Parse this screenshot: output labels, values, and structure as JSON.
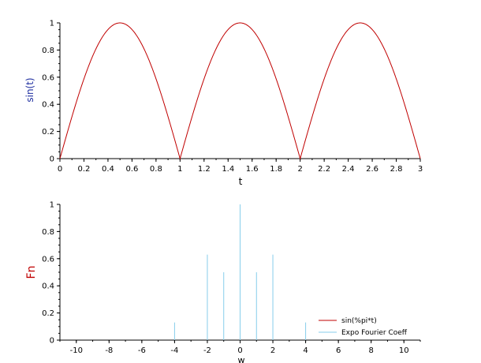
{
  "colors": {
    "background": "#ffffff",
    "axis": "#000000",
    "top_curve": "#c00000",
    "stem": "#87ceeb",
    "top_ylabel": "#1f2fa0",
    "bottom_ylabel": "#c00000"
  },
  "chart_data": [
    {
      "type": "line",
      "function": "abs(sin(pi*t))",
      "xlabel": "t",
      "ylabel": "sin(t)",
      "xlim": [
        0,
        3
      ],
      "ylim": [
        0,
        1
      ],
      "x_ticks": [
        "0",
        "0.2",
        "0.4",
        "0.6",
        "0.8",
        "1",
        "1.2",
        "1.4",
        "1.6",
        "1.8",
        "2",
        "2.2",
        "2.4",
        "2.6",
        "2.8",
        "3"
      ],
      "y_ticks": [
        "0",
        "0.2",
        "0.4",
        "0.6",
        "0.8",
        "1"
      ],
      "series": [
        {
          "x": [
            0,
            0.1,
            0.2,
            0.3,
            0.4,
            0.5,
            0.6,
            0.7,
            0.8,
            0.9,
            1.0,
            1.1,
            1.2,
            1.3,
            1.4,
            1.5,
            1.6,
            1.7,
            1.8,
            1.9,
            2.0,
            2.1,
            2.2,
            2.3,
            2.4,
            2.5,
            2.6,
            2.7,
            2.8,
            2.9,
            3.0
          ],
          "y": [
            0,
            0.309,
            0.588,
            0.809,
            0.951,
            1,
            0.951,
            0.809,
            0.588,
            0.309,
            0,
            0.309,
            0.588,
            0.809,
            0.951,
            1,
            0.951,
            0.809,
            0.588,
            0.309,
            0,
            0.309,
            0.588,
            0.809,
            0.951,
            1,
            0.951,
            0.809,
            0.588,
            0.309,
            0
          ]
        }
      ]
    },
    {
      "type": "stem",
      "xlabel": "w",
      "ylabel": "Fn",
      "xlim": [
        -11,
        11
      ],
      "ylim": [
        0,
        1
      ],
      "x_ticks": [
        "-10",
        "-8",
        "-6",
        "-4",
        "-2",
        "0",
        "2",
        "4",
        "6",
        "8",
        "10"
      ],
      "y_ticks": [
        "0",
        "0.2",
        "0.4",
        "0.6",
        "0.8",
        "1"
      ],
      "legend_position": "bottom-right",
      "legend": [
        {
          "label": "sin(%pi*t)",
          "color": "#c00000"
        },
        {
          "label": "Expo Fourier Coeff",
          "color": "#87ceeb"
        }
      ],
      "series": [
        {
          "x": [
            -4,
            -2,
            -1,
            0,
            1,
            2,
            4
          ],
          "y": [
            0.13,
            0.63,
            0.5,
            1,
            0.5,
            0.63,
            0.13
          ]
        }
      ]
    }
  ]
}
